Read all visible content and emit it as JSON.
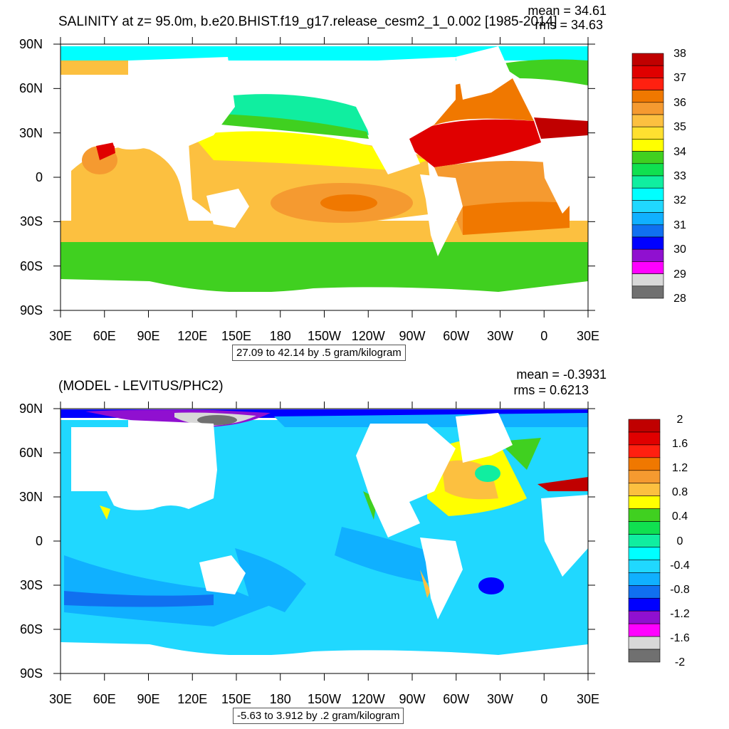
{
  "panels": [
    {
      "title": "SALINITY at z=  95.0m, b.e20.BHIST.f19_g17.release_cesm2_1_0.002 [1985-2014]",
      "stats": {
        "mean": "mean = 34.61",
        "rms": "rms = 34.63"
      },
      "contour_info": "27.09 to 42.14 by .5 gram/kilogram",
      "lat_labels": [
        "90N",
        "60N",
        "30N",
        "0",
        "30S",
        "60S",
        "90S"
      ],
      "lon_labels": [
        "30E",
        "60E",
        "90E",
        "120E",
        "150E",
        "180",
        "150W",
        "120W",
        "90W",
        "60W",
        "30W",
        "0",
        "30E"
      ],
      "colorbar": {
        "labels": [
          "38",
          "37",
          "36",
          "35",
          "34",
          "33",
          "32",
          "31",
          "30",
          "29",
          "28"
        ],
        "colors": [
          "#c00000",
          "#e00000",
          "#ff2010",
          "#f07800",
          "#f59a30",
          "#fcc040",
          "#ffe030",
          "#ffff00",
          "#40d020",
          "#10e050",
          "#10eea0",
          "#00ffff",
          "#20d8ff",
          "#10b0ff",
          "#1070f0",
          "#0000ff",
          "#9010d0",
          "#ff00ff",
          "#d8d8d8",
          "#707070"
        ]
      }
    },
    {
      "title": "(MODEL - LEVITUS/PHC2)",
      "stats": {
        "mean": "mean = -0.3931",
        "rms": "rms = 0.6213"
      },
      "contour_info": "-5.63 to 3.912 by .2 gram/kilogram",
      "lat_labels": [
        "90N",
        "60N",
        "30N",
        "0",
        "30S",
        "60S",
        "90S"
      ],
      "lon_labels": [
        "30E",
        "60E",
        "90E",
        "120E",
        "150E",
        "180",
        "150W",
        "120W",
        "90W",
        "60W",
        "30W",
        "0",
        "30E"
      ],
      "colorbar": {
        "labels": [
          "2",
          "1.6",
          "1.2",
          "0.8",
          "0.4",
          "0",
          "-0.4",
          "-0.8",
          "-1.2",
          "-1.6",
          "-2"
        ],
        "colors": [
          "#c00000",
          "#e00000",
          "#ff2010",
          "#f07800",
          "#f59a30",
          "#fcc040",
          "#ffff00",
          "#40d020",
          "#10e050",
          "#10eea0",
          "#00ffff",
          "#20d8ff",
          "#10b0ff",
          "#1070f0",
          "#0000ff",
          "#9010d0",
          "#ff00ff",
          "#d8d8d8",
          "#707070"
        ]
      }
    }
  ]
}
